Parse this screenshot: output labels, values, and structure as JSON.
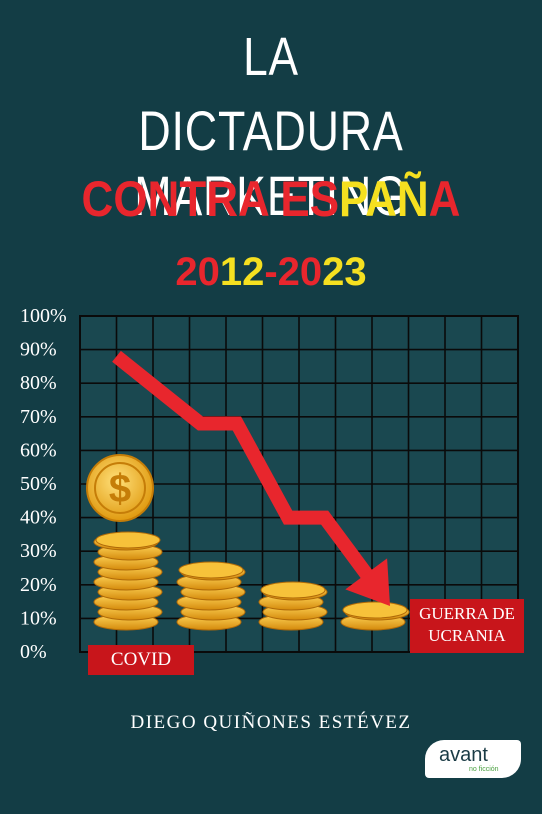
{
  "title": {
    "line1": "LA",
    "line2": "DICTADURA  MARKETING"
  },
  "subtitle": {
    "part1": "CONTRA E",
    "part2": "S",
    "part3": "PA",
    "part4": "Ñ",
    "part5": "A"
  },
  "years": {
    "a": "20",
    "b": "12",
    "c": "-",
    "d": "20",
    "e": "23"
  },
  "chart_data": {
    "type": "area",
    "yticks": [
      "100%",
      "90%",
      "80%",
      "70%",
      "60%",
      "50%",
      "40%",
      "30%",
      "20%",
      "10%",
      "0%"
    ],
    "ylim": [
      0,
      100
    ],
    "grid": true,
    "arrow_points": [
      [
        1,
        88
      ],
      [
        3.3,
        68
      ],
      [
        4.3,
        68
      ],
      [
        5.7,
        40
      ],
      [
        6.7,
        40
      ],
      [
        8.2,
        18
      ]
    ]
  },
  "labels": {
    "covid": "COVID",
    "war_line1": "GUERRA DE",
    "war_line2": "UCRANIA"
  },
  "author": "DIEGO QUIÑONES ESTÉVEZ",
  "publisher": {
    "name": "avant",
    "sub": "no ficción"
  },
  "colors": {
    "background": "#133d45",
    "red": "#e8262d",
    "yellow": "#f5e020",
    "coin": "#f2b21e"
  }
}
